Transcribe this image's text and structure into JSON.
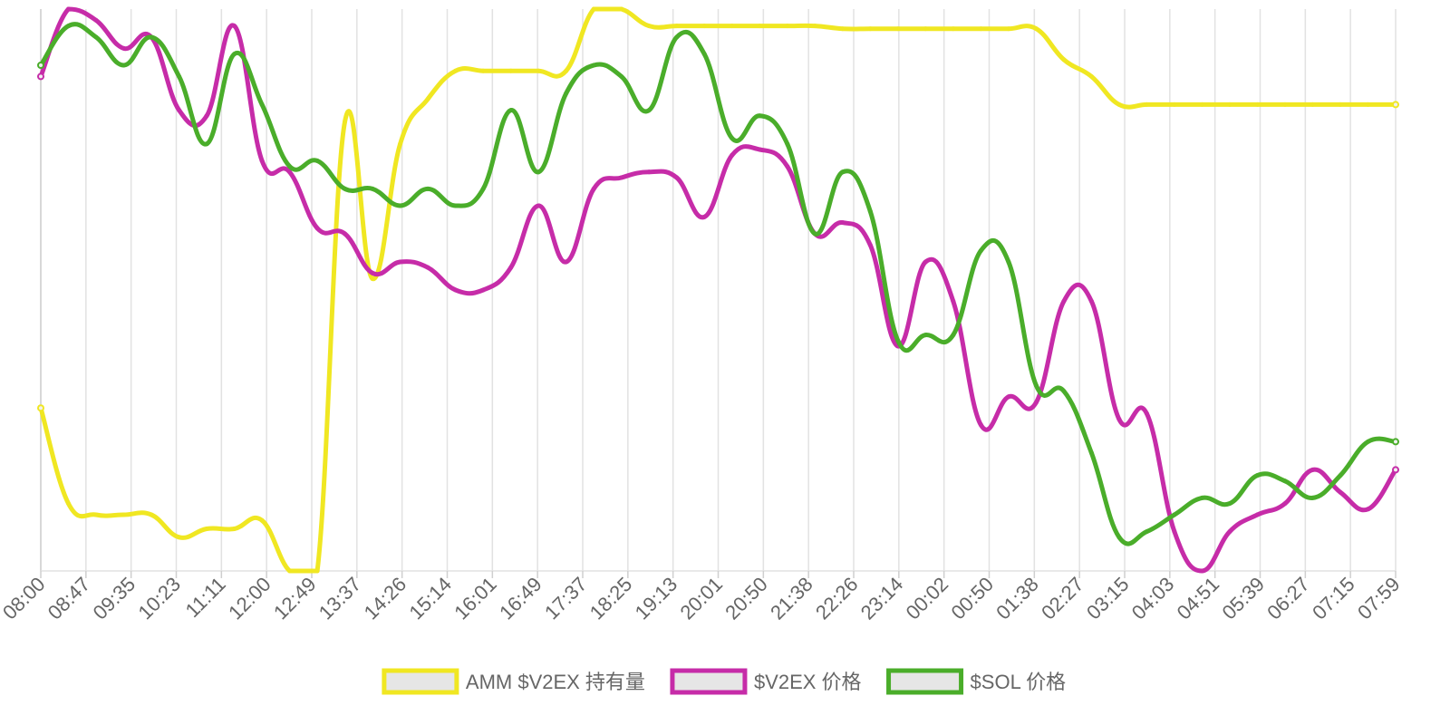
{
  "chart_data": {
    "type": "line",
    "title": "",
    "xlabel": "",
    "ylabel": "",
    "grid": true,
    "legend_position": "bottom",
    "x_ticks": [
      "08:00",
      "08:47",
      "09:35",
      "10:23",
      "11:11",
      "12:00",
      "12:49",
      "13:37",
      "14:26",
      "15:14",
      "16:01",
      "16:49",
      "17:37",
      "18:25",
      "19:13",
      "20:01",
      "20:50",
      "21:38",
      "22:26",
      "23:14",
      "00:02",
      "00:50",
      "01:38",
      "02:27",
      "03:15",
      "04:03",
      "04:51",
      "05:39",
      "06:27",
      "07:15",
      "07:59"
    ],
    "series": [
      {
        "name": "AMM $V2EX 持有量",
        "color": "#f0e722",
        "values": [
          0.29,
          0.12,
          0.1,
          0.1,
          0.1,
          0.06,
          0.075,
          0.075,
          0.09,
          0.0,
          0.0,
          0.8,
          0.52,
          0.76,
          0.84,
          0.89,
          0.89,
          0.89,
          0.89,
          0.89,
          1.0,
          1.0,
          0.97,
          0.97,
          0.97,
          0.97,
          0.97,
          0.97,
          0.97,
          0.965,
          0.965,
          0.965,
          0.965,
          0.965,
          0.965,
          0.965,
          0.965,
          0.91,
          0.88,
          0.83,
          0.83,
          0.83,
          0.83,
          0.83,
          0.83,
          0.83,
          0.83,
          0.83,
          0.83,
          0.83
        ]
      },
      {
        "name": "$V2EX 价格",
        "color": "#c62ca8",
        "values": [
          0.88,
          1.0,
          0.98,
          0.93,
          0.95,
          0.82,
          0.81,
          0.97,
          0.73,
          0.71,
          0.61,
          0.6,
          0.53,
          0.55,
          0.54,
          0.5,
          0.5,
          0.54,
          0.65,
          0.55,
          0.68,
          0.7,
          0.71,
          0.7,
          0.63,
          0.74,
          0.75,
          0.72,
          0.6,
          0.62,
          0.58,
          0.4,
          0.55,
          0.48,
          0.26,
          0.31,
          0.3,
          0.48,
          0.48,
          0.27,
          0.28,
          0.07,
          0.0,
          0.07,
          0.1,
          0.12,
          0.18,
          0.14,
          0.11,
          0.18
        ]
      },
      {
        "name": "$SOL 价格",
        "color": "#4aad2a",
        "values": [
          0.9,
          0.97,
          0.95,
          0.9,
          0.95,
          0.88,
          0.76,
          0.92,
          0.83,
          0.72,
          0.73,
          0.68,
          0.68,
          0.65,
          0.68,
          0.65,
          0.68,
          0.82,
          0.71,
          0.85,
          0.9,
          0.88,
          0.82,
          0.95,
          0.92,
          0.77,
          0.81,
          0.76,
          0.6,
          0.71,
          0.64,
          0.41,
          0.42,
          0.42,
          0.57,
          0.55,
          0.33,
          0.32,
          0.21,
          0.06,
          0.07,
          0.1,
          0.13,
          0.12,
          0.17,
          0.16,
          0.13,
          0.17,
          0.23,
          0.23
        ]
      }
    ]
  }
}
